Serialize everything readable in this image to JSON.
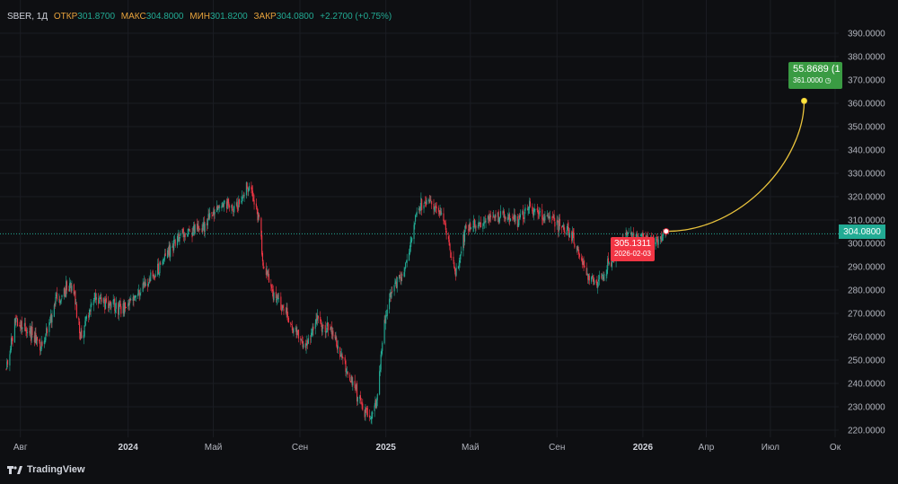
{
  "legend": {
    "symbol": "SBER, 1Д",
    "open_label": "ОТКР",
    "open": "301.8700",
    "high_label": "МАКС",
    "high": "304.8000",
    "low_label": "МИН",
    "low": "301.8200",
    "close_label": "ЗАКР",
    "close": "304.0800",
    "change": "+2.2700 (+0.75%)"
  },
  "price_tag": "304.0800",
  "forecast_start": {
    "value": "305.1311",
    "date": "2026-02-03"
  },
  "forecast_target": {
    "change": "55.8689 (1",
    "price": "361.0000"
  },
  "brand": "TradingView",
  "colors": {
    "up": "#22ab94",
    "down": "#f23645",
    "forecast": "#e8c23c",
    "label_orange": "#e8a33c"
  },
  "chart_data": {
    "type": "candlestick",
    "ylim": [
      217,
      395
    ],
    "y_ticks": [
      "390.0000",
      "380.0000",
      "370.0000",
      "360.0000",
      "350.0000",
      "340.0000",
      "330.0000",
      "320.0000",
      "310.0000",
      "300.0000",
      "290.0000",
      "280.0000",
      "270.0000",
      "260.0000",
      "250.0000",
      "240.0000",
      "230.0000",
      "220.0000"
    ],
    "x_ticks": [
      {
        "label": "Авг",
        "date": "2023-08-01"
      },
      {
        "label": "2024",
        "date": "2024-01-01"
      },
      {
        "label": "Май",
        "date": "2024-05-01"
      },
      {
        "label": "Сен",
        "date": "2024-09-01"
      },
      {
        "label": "2025",
        "date": "2025-01-01"
      },
      {
        "label": "Май",
        "date": "2025-05-01"
      },
      {
        "label": "Сен",
        "date": "2025-09-01"
      },
      {
        "label": "2026",
        "date": "2026-01-01"
      },
      {
        "label": "Апр",
        "date": "2026-04-01"
      },
      {
        "label": "Июл",
        "date": "2026-07-01"
      },
      {
        "label": "Ок",
        "date": "2026-10-01"
      }
    ],
    "current_price": 304.08,
    "close_path": [
      [
        "2023-07-12",
        247
      ],
      [
        "2023-07-25",
        268
      ],
      [
        "2023-08-15",
        262
      ],
      [
        "2023-09-01",
        255
      ],
      [
        "2023-09-20",
        275
      ],
      [
        "2023-10-15",
        283
      ],
      [
        "2023-10-25",
        260
      ],
      [
        "2023-11-15",
        277
      ],
      [
        "2023-12-01",
        274
      ],
      [
        "2023-12-25",
        272
      ],
      [
        "2024-01-20",
        280
      ],
      [
        "2024-02-15",
        290
      ],
      [
        "2024-03-01",
        299
      ],
      [
        "2024-03-25",
        305
      ],
      [
        "2024-04-15",
        307
      ],
      [
        "2024-05-01",
        313
      ],
      [
        "2024-05-15",
        318
      ],
      [
        "2024-06-01",
        314
      ],
      [
        "2024-06-20",
        325
      ],
      [
        "2024-07-05",
        312
      ],
      [
        "2024-07-10",
        291
      ],
      [
        "2024-07-25",
        280
      ],
      [
        "2024-08-15",
        268
      ],
      [
        "2024-08-25",
        262
      ],
      [
        "2024-09-10",
        255
      ],
      [
        "2024-09-25",
        268
      ],
      [
        "2024-10-15",
        262
      ],
      [
        "2024-10-25",
        255
      ],
      [
        "2024-11-15",
        240
      ],
      [
        "2024-11-25",
        232
      ],
      [
        "2024-12-10",
        226
      ],
      [
        "2024-12-20",
        233
      ],
      [
        "2024-12-28",
        263
      ],
      [
        "2025-01-10",
        280
      ],
      [
        "2025-01-25",
        287
      ],
      [
        "2025-02-05",
        300
      ],
      [
        "2025-02-15",
        315
      ],
      [
        "2025-03-05",
        318
      ],
      [
        "2025-03-25",
        310
      ],
      [
        "2025-04-10",
        286
      ],
      [
        "2025-04-25",
        305
      ],
      [
        "2025-05-25",
        310
      ],
      [
        "2025-06-15",
        313
      ],
      [
        "2025-07-10",
        310
      ],
      [
        "2025-07-25",
        316
      ],
      [
        "2025-08-10",
        312
      ],
      [
        "2025-09-01",
        309
      ],
      [
        "2025-09-20",
        304
      ],
      [
        "2025-10-10",
        288
      ],
      [
        "2025-10-25",
        282
      ],
      [
        "2025-11-05",
        287
      ],
      [
        "2025-11-25",
        296
      ],
      [
        "2025-12-10",
        304
      ],
      [
        "2025-12-25",
        303
      ],
      [
        "2026-01-10",
        302
      ],
      [
        "2026-01-25",
        301
      ],
      [
        "2026-02-03",
        305
      ]
    ],
    "forecast": {
      "start": {
        "date": "2026-02-03",
        "price": 305.1311
      },
      "end": {
        "date": "2026-08-18",
        "price": 361.0
      }
    }
  }
}
